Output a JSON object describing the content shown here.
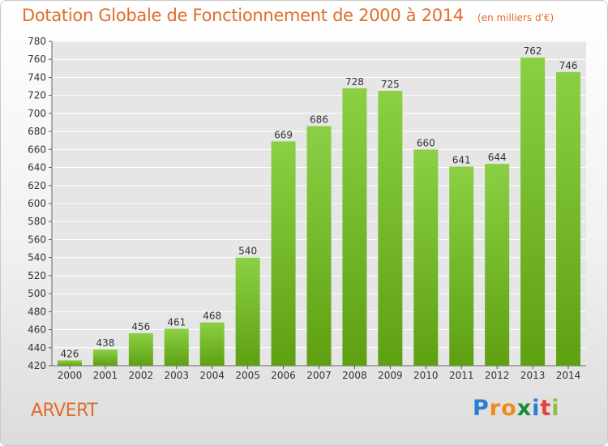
{
  "title": "Dotation Globale de Fonctionnement de 2000 à 2014",
  "subtitle": "(en milliers d'€)",
  "commune": "ARVERT",
  "logo": {
    "letters": [
      "P",
      "r",
      "o",
      "x",
      "i",
      "t",
      "i"
    ],
    "colors": [
      "#2a7fd4",
      "#f08a1c",
      "#f08a1c",
      "#1a8a3a",
      "#2a7fd4",
      "#e64040",
      "#8fc03c"
    ]
  },
  "colors": {
    "bar_top": "#8bd044",
    "bar_bottom": "#5ea012",
    "title": "#e06d2a",
    "grid": "#ffffff",
    "axis_text": "#333333"
  },
  "chart_data": {
    "type": "bar",
    "title": "Dotation Globale de Fonctionnement de 2000 à 2014",
    "subtitle": "(en milliers d'€)",
    "categories": [
      "2000",
      "2001",
      "2002",
      "2003",
      "2004",
      "2005",
      "2006",
      "2007",
      "2008",
      "2009",
      "2010",
      "2011",
      "2012",
      "2013",
      "2014"
    ],
    "values": [
      426,
      438,
      456,
      461,
      468,
      540,
      669,
      686,
      728,
      725,
      660,
      641,
      644,
      762,
      746
    ],
    "ylim": [
      420,
      780
    ],
    "yticks": [
      420,
      440,
      460,
      480,
      500,
      520,
      540,
      560,
      580,
      600,
      620,
      640,
      660,
      680,
      700,
      720,
      740,
      760,
      780
    ],
    "grid": true,
    "xlabel": "",
    "ylabel": ""
  }
}
